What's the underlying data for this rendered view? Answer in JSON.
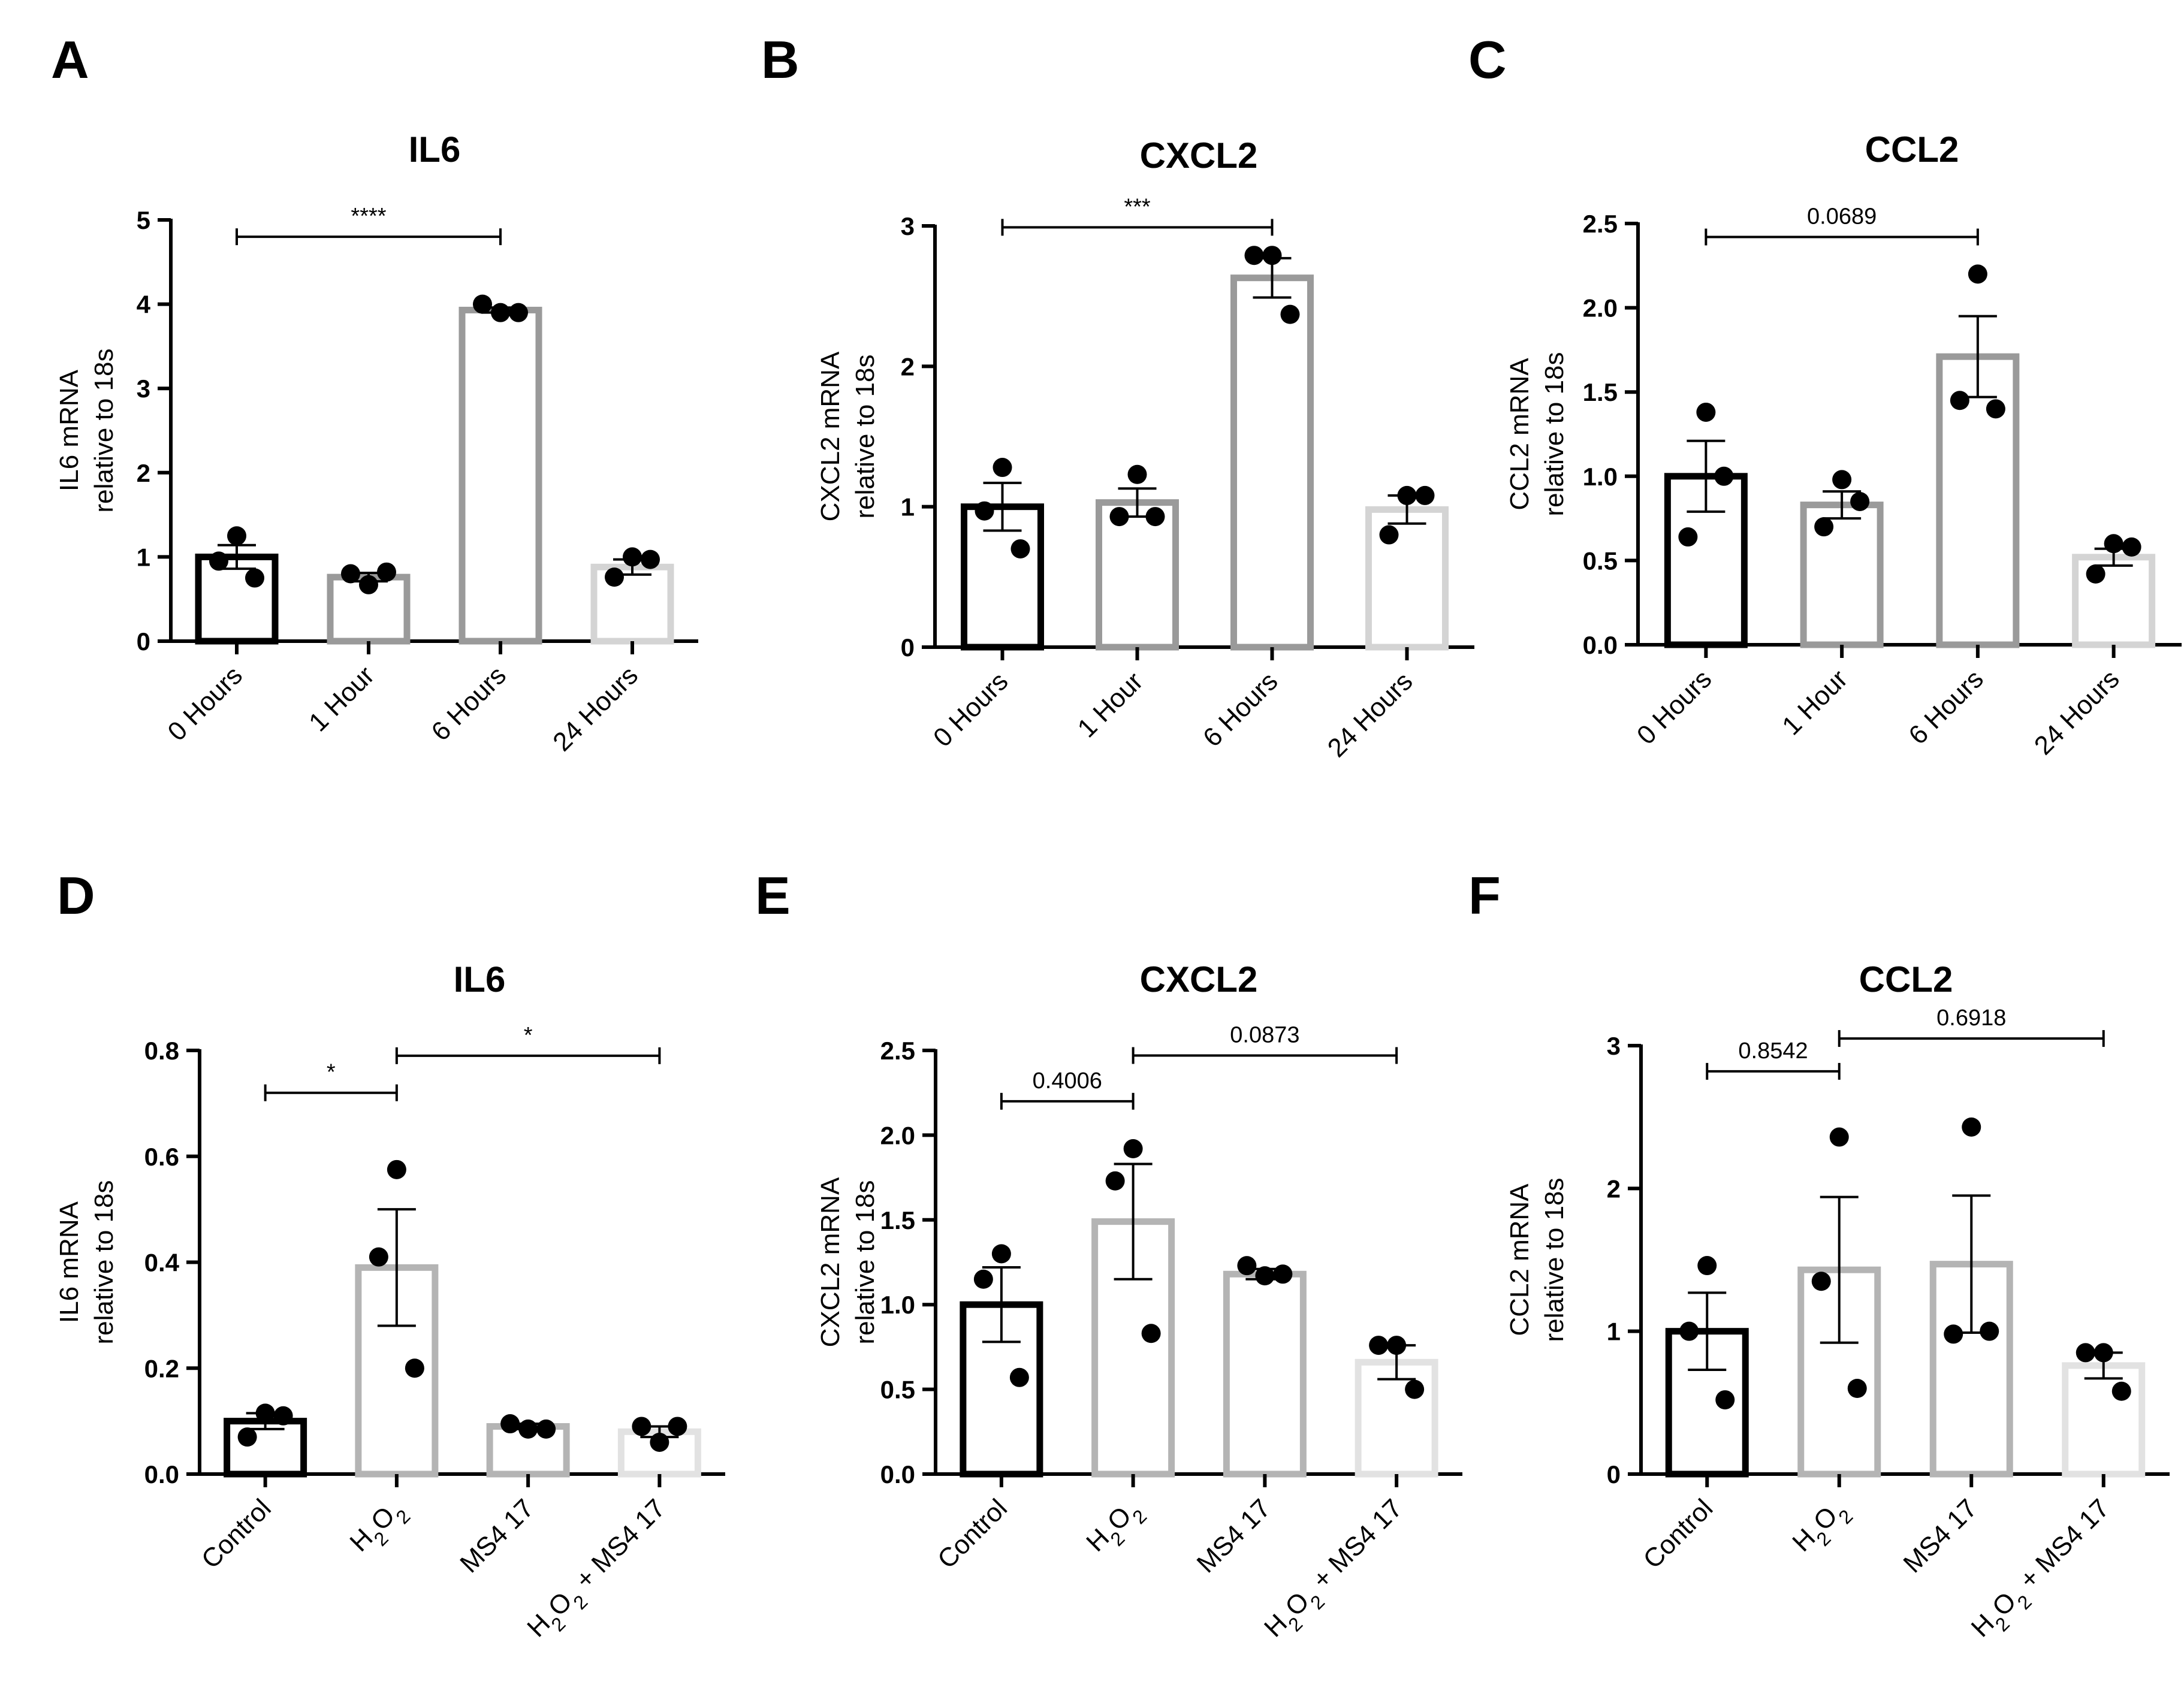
{
  "chart_data": [
    {
      "panel": "A",
      "type": "bar",
      "title": "IL6",
      "ylabel": [
        "IL6 mRNA",
        "relative to 18s"
      ],
      "ylim": [
        0,
        5
      ],
      "yticks": [
        0,
        1,
        2,
        3,
        4,
        5
      ],
      "categories": [
        "0 Hours",
        "1 Hour",
        "6 Hours",
        "24 Hours"
      ],
      "values": [
        1.0,
        0.76,
        3.93,
        0.88
      ],
      "errors": [
        0.14,
        0.05,
        0.03,
        0.09
      ],
      "points": [
        [
          1.25,
          0.95,
          0.75
        ],
        [
          0.67,
          0.8,
          0.82
        ],
        [
          3.9,
          4.0,
          3.9
        ],
        [
          1.0,
          0.76,
          0.97
        ]
      ],
      "bar_colors": [
        "#000000",
        "#9a9a9a",
        "#9a9a9a",
        "#d4d4d4"
      ],
      "annotations": [
        {
          "from": 0,
          "to": 2,
          "y": 4.8,
          "text": "****"
        }
      ]
    },
    {
      "panel": "B",
      "type": "bar",
      "title": "CXCL2",
      "ylabel": [
        "CXCL2 mRNA",
        "relative to 18s"
      ],
      "ylim": [
        0,
        3
      ],
      "yticks": [
        0,
        1,
        2,
        3
      ],
      "categories": [
        "0 Hours",
        "1 Hour",
        "6 Hours",
        "24 Hours"
      ],
      "values": [
        1.0,
        1.03,
        2.63,
        0.98
      ],
      "errors": [
        0.17,
        0.1,
        0.14,
        0.1
      ],
      "points": [
        [
          1.28,
          0.97,
          0.7
        ],
        [
          1.23,
          0.93,
          0.93
        ],
        [
          2.79,
          2.79,
          2.37
        ],
        [
          1.08,
          0.8,
          1.08
        ]
      ],
      "bar_colors": [
        "#000000",
        "#9a9a9a",
        "#9a9a9a",
        "#d4d4d4"
      ],
      "annotations": [
        {
          "from": 0,
          "to": 2,
          "y": 2.99,
          "text": "***"
        }
      ]
    },
    {
      "panel": "C",
      "type": "bar",
      "title": "CCL2",
      "ylabel": [
        "CCL2 mRNA",
        "relative to 18s"
      ],
      "ylim": [
        0,
        2.5
      ],
      "yticks": [
        0.0,
        0.5,
        1.0,
        1.5,
        2.0,
        2.5
      ],
      "categories": [
        "0 Hours",
        "1 Hour",
        "6 Hours",
        "24 Hours"
      ],
      "values": [
        1.0,
        0.83,
        1.71,
        0.52
      ],
      "errors": [
        0.21,
        0.08,
        0.24,
        0.05
      ],
      "points": [
        [
          1.38,
          0.64,
          1.0
        ],
        [
          0.98,
          0.7,
          0.85
        ],
        [
          2.2,
          1.45,
          1.4
        ],
        [
          0.6,
          0.42,
          0.58
        ]
      ],
      "bar_colors": [
        "#000000",
        "#9a9a9a",
        "#9a9a9a",
        "#d4d4d4"
      ],
      "annotations": [
        {
          "from": 0,
          "to": 2,
          "y": 2.42,
          "text": "0.0689"
        }
      ]
    },
    {
      "panel": "D",
      "type": "bar",
      "title": "IL6",
      "ylabel": [
        "IL6 mRNA",
        "relative to 18s"
      ],
      "ylim": [
        0,
        0.8
      ],
      "yticks": [
        0.0,
        0.2,
        0.4,
        0.6,
        0.8
      ],
      "categories": [
        "Control",
        "H2O2",
        "MS4 17",
        "H2O2 + MS4 17"
      ],
      "values": [
        0.1,
        0.39,
        0.09,
        0.08
      ],
      "errors": [
        0.015,
        0.11,
        0.005,
        0.01
      ],
      "points": [
        [
          0.115,
          0.07,
          0.11
        ],
        [
          0.575,
          0.41,
          0.2
        ],
        [
          0.085,
          0.095,
          0.085
        ],
        [
          0.06,
          0.09,
          0.09
        ]
      ],
      "bar_colors": [
        "#000000",
        "#b4b4b4",
        "#b4b4b4",
        "#e2e2e2"
      ],
      "annotations": [
        {
          "from": 0,
          "to": 1,
          "y": 0.72,
          "text": "*"
        },
        {
          "from": 1,
          "to": 3,
          "y": 0.79,
          "text": "*"
        }
      ]
    },
    {
      "panel": "E",
      "type": "bar",
      "title": "CXCL2",
      "ylabel": [
        "CXCL2 mRNA",
        "relative to 18s"
      ],
      "ylim": [
        0,
        2.5
      ],
      "yticks": [
        0.0,
        0.5,
        1.0,
        1.5,
        2.0,
        2.5
      ],
      "categories": [
        "Control",
        "H2O2",
        "MS4 17",
        "H2O2 + MS4 17"
      ],
      "values": [
        1.0,
        1.49,
        1.18,
        0.66
      ],
      "errors": [
        0.22,
        0.34,
        0.03,
        0.1
      ],
      "points": [
        [
          1.3,
          1.15,
          0.57
        ],
        [
          1.92,
          1.73,
          0.83
        ],
        [
          1.17,
          1.23,
          1.18
        ],
        [
          0.76,
          0.76,
          0.5
        ]
      ],
      "bar_colors": [
        "#000000",
        "#b4b4b4",
        "#b4b4b4",
        "#e2e2e2"
      ],
      "annotations": [
        {
          "from": 0,
          "to": 1,
          "y": 2.2,
          "text": "0.4006"
        },
        {
          "from": 1,
          "to": 3,
          "y": 2.47,
          "text": "0.0873"
        }
      ]
    },
    {
      "panel": "F",
      "type": "bar",
      "title": "CCL2",
      "ylabel": [
        "CCL2 mRNA",
        "relative to 18s"
      ],
      "ylim": [
        0,
        3
      ],
      "yticks": [
        0,
        1,
        2,
        3
      ],
      "categories": [
        "Control",
        "H2O2",
        "MS4 17",
        "H2O2 + MS4 17"
      ],
      "values": [
        1.0,
        1.43,
        1.47,
        0.76
      ],
      "errors": [
        0.27,
        0.51,
        0.48,
        0.09
      ],
      "points": [
        [
          1.46,
          1.0,
          0.52
        ],
        [
          2.36,
          1.35,
          0.6
        ],
        [
          2.43,
          0.98,
          1.0
        ],
        [
          0.85,
          0.85,
          0.58
        ]
      ],
      "bar_colors": [
        "#000000",
        "#b4b4b4",
        "#b4b4b4",
        "#e2e2e2"
      ],
      "annotations": [
        {
          "from": 0,
          "to": 1,
          "y": 2.82,
          "text": "0.8542"
        },
        {
          "from": 1,
          "to": 3,
          "y": 3.05,
          "text": "0.6918"
        }
      ]
    }
  ]
}
